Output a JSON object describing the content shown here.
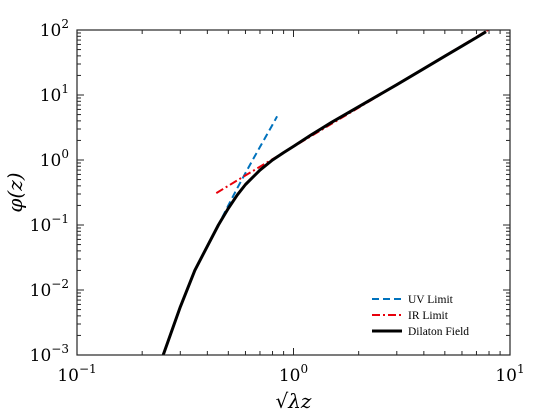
{
  "chart_data": {
    "type": "line",
    "xscale": "log",
    "yscale": "log",
    "xlim": [
      0.1,
      10
    ],
    "ylim": [
      0.001,
      100
    ],
    "xlabel": "√λz",
    "ylabel": "φ(z)",
    "x_ticks": [
      {
        "value": 0.1,
        "base": "10",
        "exp": "−1"
      },
      {
        "value": 1,
        "base": "10",
        "exp": "0"
      },
      {
        "value": 10,
        "base": "10",
        "exp": "1"
      }
    ],
    "y_ticks": [
      {
        "value": 0.001,
        "base": "10",
        "exp": "−3"
      },
      {
        "value": 0.01,
        "base": "10",
        "exp": "−2"
      },
      {
        "value": 0.1,
        "base": "10",
        "exp": "−1"
      },
      {
        "value": 1,
        "base": "10",
        "exp": "0"
      },
      {
        "value": 10,
        "base": "10",
        "exp": "1"
      },
      {
        "value": 100,
        "base": "10",
        "exp": "2"
      }
    ],
    "legend_position": "bottom-right",
    "series": [
      {
        "name": "UV Limit",
        "color": "#0072bd",
        "style": "dashed",
        "x": [
          0.4,
          0.45,
          0.5,
          0.55,
          0.6,
          0.65,
          0.7,
          0.75,
          0.8,
          0.84
        ],
        "y": [
          0.046,
          0.1,
          0.2,
          0.37,
          0.63,
          1.02,
          1.59,
          2.39,
          3.48,
          4.7
        ]
      },
      {
        "name": "IR Limit",
        "color": "#e8000b",
        "style": "dashdot",
        "x": [
          0.44,
          0.6,
          0.8,
          1.0,
          1.5,
          2.0,
          3.0,
          4.0,
          5.0,
          6.0,
          7.0,
          8.0
        ],
        "y": [
          0.31,
          0.58,
          1.03,
          1.6,
          3.6,
          6.4,
          14.4,
          25.6,
          40,
          57.6,
          78.4,
          102
        ]
      },
      {
        "name": "Dilaton Field",
        "color": "#000000",
        "style": "solid",
        "x": [
          0.25,
          0.3,
          0.35,
          0.4,
          0.45,
          0.5,
          0.55,
          0.6,
          0.7,
          0.8,
          0.9,
          1.0,
          1.2,
          1.5,
          2.0,
          3.0,
          4.0,
          5.0,
          6.0,
          7.0,
          7.75
        ],
        "y": [
          0.001,
          0.0055,
          0.02,
          0.047,
          0.1,
          0.18,
          0.29,
          0.42,
          0.7,
          1.0,
          1.3,
          1.62,
          2.4,
          3.8,
          6.6,
          14.4,
          25.4,
          39.5,
          56.6,
          76.6,
          94
        ]
      }
    ]
  }
}
